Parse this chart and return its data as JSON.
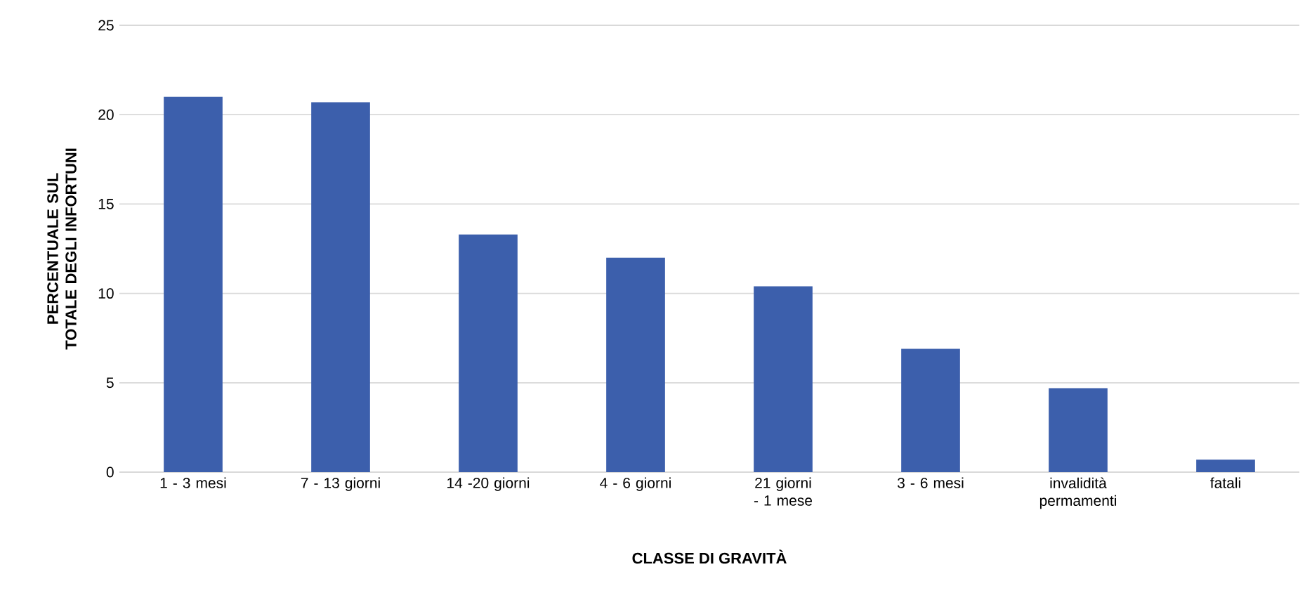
{
  "chart_data": {
    "type": "bar",
    "xlabel": "CLASSE DI GRAVITÀ",
    "ylabel": "PERCENTUALE SUL TOTALE DEGLI INFORTUNI",
    "categories": [
      "1 - 3 mesi",
      "7 - 13 giorni",
      "14 -20 giorni",
      "4 - 6 giorni",
      "21 giorni - 1 mese",
      "3 - 6 mesi",
      "invalidità permamenti",
      "fatali"
    ],
    "values": [
      21.0,
      20.7,
      13.3,
      12.0,
      10.4,
      6.9,
      4.7,
      0.7
    ],
    "color": "#3c5fac",
    "ylim": [
      0,
      25
    ],
    "yticks": [
      0,
      5,
      10,
      15,
      20,
      25
    ],
    "grid": "y"
  }
}
